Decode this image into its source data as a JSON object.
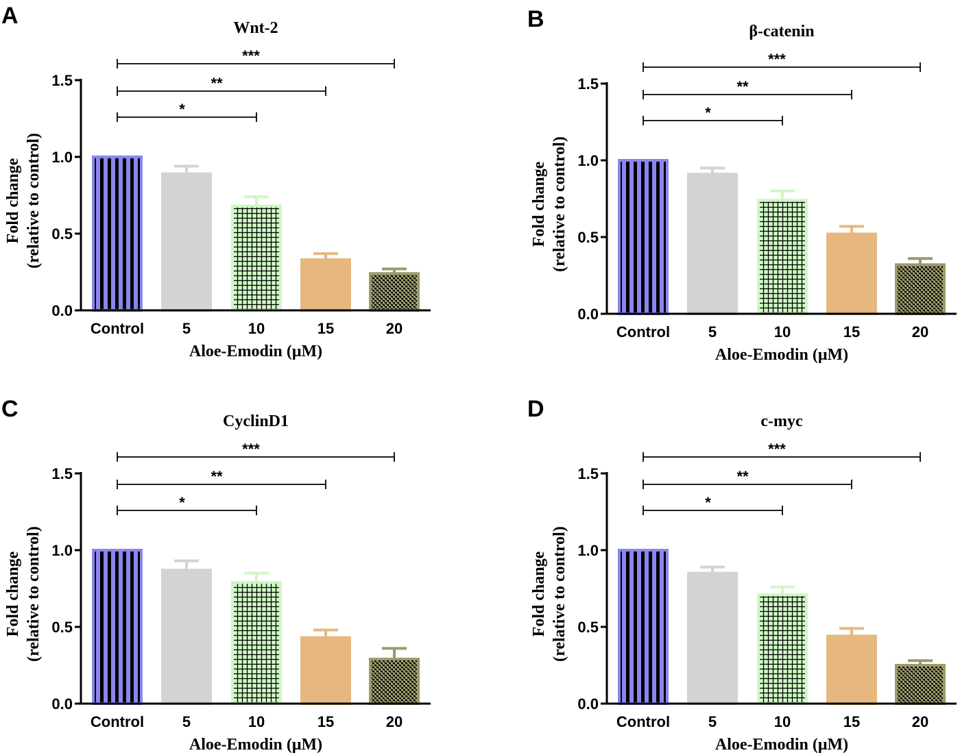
{
  "chart_data": [
    {
      "panel": "A",
      "type": "bar",
      "title": "Wnt-2",
      "xlabel": "Aloe-Emodin (μM)",
      "ylabel_lines": [
        "Fold change",
        "(relative to control)"
      ],
      "categories": [
        "Control",
        "5",
        "10",
        "15",
        "20"
      ],
      "values": [
        1.0,
        0.89,
        0.68,
        0.33,
        0.24
      ],
      "errors": [
        0.0,
        0.05,
        0.06,
        0.04,
        0.03
      ],
      "ylim": [
        0,
        1.5
      ],
      "yticks": [
        "0.0",
        "0.5",
        "1.0",
        "1.5"
      ],
      "significance": [
        {
          "from": 0,
          "to": 2,
          "label": "*"
        },
        {
          "from": 0,
          "to": 3,
          "label": "**"
        },
        {
          "from": 0,
          "to": 4,
          "label": "***"
        }
      ]
    },
    {
      "panel": "B",
      "type": "bar",
      "title": "β-catenin",
      "xlabel": "Aloe-Emodin (μM)",
      "ylabel_lines": [
        "Fold change",
        "(relative to control)"
      ],
      "categories": [
        "Control",
        "5",
        "10",
        "15",
        "20"
      ],
      "values": [
        1.0,
        0.91,
        0.74,
        0.52,
        0.32
      ],
      "errors": [
        0.0,
        0.04,
        0.06,
        0.05,
        0.04
      ],
      "ylim": [
        0,
        1.5
      ],
      "yticks": [
        "0.0",
        "0.5",
        "1.0",
        "1.5"
      ],
      "significance": [
        {
          "from": 0,
          "to": 2,
          "label": "*"
        },
        {
          "from": 0,
          "to": 3,
          "label": "**"
        },
        {
          "from": 0,
          "to": 4,
          "label": "***"
        }
      ]
    },
    {
      "panel": "C",
      "type": "bar",
      "title": "CyclinD1",
      "xlabel": "Aloe-Emodin (μM)",
      "ylabel_lines": [
        "Fold change",
        "(relative to control)"
      ],
      "categories": [
        "Control",
        "5",
        "10",
        "15",
        "20"
      ],
      "values": [
        1.0,
        0.87,
        0.79,
        0.43,
        0.29
      ],
      "errors": [
        0.0,
        0.06,
        0.06,
        0.05,
        0.07
      ],
      "ylim": [
        0,
        1.5
      ],
      "yticks": [
        "0.0",
        "0.5",
        "1.0",
        "1.5"
      ],
      "significance": [
        {
          "from": 0,
          "to": 2,
          "label": "*"
        },
        {
          "from": 0,
          "to": 3,
          "label": "**"
        },
        {
          "from": 0,
          "to": 4,
          "label": "***"
        }
      ]
    },
    {
      "panel": "D",
      "type": "bar",
      "title": "c-myc",
      "xlabel": "Aloe-Emodin (μM)",
      "ylabel_lines": [
        "Fold change",
        "(relative to control)"
      ],
      "categories": [
        "Control",
        "5",
        "10",
        "15",
        "20"
      ],
      "values": [
        1.0,
        0.85,
        0.71,
        0.44,
        0.25
      ],
      "errors": [
        0.0,
        0.04,
        0.05,
        0.05,
        0.03
      ],
      "ylim": [
        0,
        1.5
      ],
      "yticks": [
        "0.0",
        "0.5",
        "1.0",
        "1.5"
      ],
      "significance": [
        {
          "from": 0,
          "to": 2,
          "label": "*"
        },
        {
          "from": 0,
          "to": 3,
          "label": "**"
        },
        {
          "from": 0,
          "to": 4,
          "label": "***"
        }
      ]
    }
  ],
  "colors": {
    "control": "#8b86ee",
    "dose5": "#d3d3d3",
    "dose10": "#cff8c4",
    "dose15": "#e6b880",
    "dose20": "#9c9a6b",
    "ink": "#000000"
  }
}
